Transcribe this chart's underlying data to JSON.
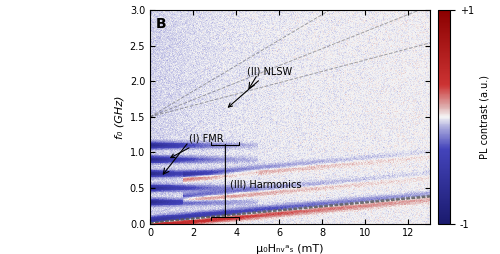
{
  "title": "B",
  "xlabel": "μ₀Hₙᵥᵃₛ (mT)",
  "ylabel": "f₀ (GHz)",
  "xlim": [
    0,
    13
  ],
  "ylim": [
    0.0,
    3.0
  ],
  "xticks": [
    0,
    2,
    4,
    6,
    8,
    10,
    12
  ],
  "yticks": [
    0.0,
    0.5,
    1.0,
    1.5,
    2.0,
    2.5,
    3.0
  ],
  "colorbar_label": "PL contrast (a.u.)",
  "colorbar_ticks": [
    1,
    -1
  ],
  "colorbar_tick_labels": [
    "+1",
    "-1"
  ],
  "annotation_fmr": "(I) FMR",
  "annotation_nlsw": "(II) NLSW",
  "annotation_harmonics": "(III) Harmonics",
  "fmr_curve_color": "#c8102e",
  "nlsw_curve_color": "#c8102e",
  "dashed_line_color": "#888888",
  "background_color": "#f0f0f8"
}
